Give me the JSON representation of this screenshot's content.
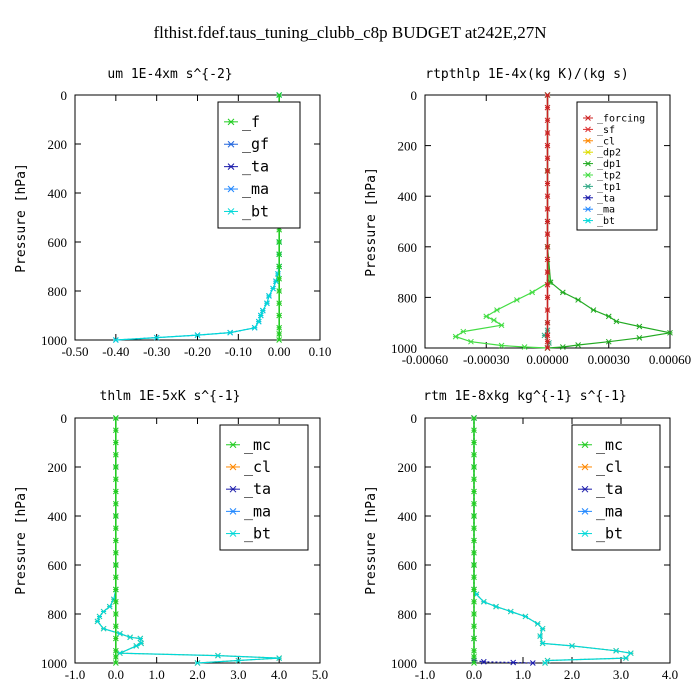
{
  "figure_title": "flthist.fdef.taus_tuning_clubb_c8p  BUDGET at242E,27N",
  "colors": {
    "_f": "#22cc22",
    "_gf": "#2266dd",
    "_ta": "#1a1aaa",
    "_ma": "#2288ff",
    "_bt": "#00d8d8",
    "_forcing": "#cc2222",
    "_sf": "#dd3333",
    "_cl": "#ff8800",
    "_dp2": "#dddd00",
    "_dp1": "#22aa22",
    "_tp2": "#44dd44",
    "_tp1": "#33aa88",
    "_mc": "#22cc22"
  },
  "chart_data": [
    {
      "type": "line",
      "title": "um  1E-4xm s^{-2}",
      "ylabel": "Pressure [hPa]",
      "xlim": [
        -0.5,
        0.1
      ],
      "ylim": [
        1000,
        0
      ],
      "xticks": [
        "-0.50",
        "-0.40",
        "-0.30",
        "-0.20",
        "-0.10",
        "0.00",
        "0.10"
      ],
      "yticks": [
        "0",
        "200",
        "400",
        "600",
        "800",
        "1000"
      ],
      "legend_position": "top-right",
      "legend": [
        "_f",
        "_gf",
        "_ta",
        "_ma",
        "_bt"
      ],
      "series": [
        {
          "name": "_gf",
          "style": "dot",
          "x": [
            0.0,
            0.0,
            0.0,
            0.0,
            0.0,
            0.0,
            0.0,
            0.0,
            0.0,
            -0.003,
            -0.008,
            -0.015,
            -0.025,
            -0.03,
            -0.04,
            -0.045,
            -0.05,
            -0.06,
            -0.12,
            -0.2,
            -0.3,
            -0.4
          ],
          "y": [
            0,
            100,
            200,
            300,
            400,
            500,
            600,
            650,
            700,
            730,
            760,
            790,
            820,
            850,
            880,
            900,
            925,
            950,
            970,
            980,
            990,
            1000
          ]
        },
        {
          "name": "_bt",
          "style": "solid",
          "x": [
            0.0,
            0.0,
            0.0,
            0.0,
            0.0,
            0.0,
            0.0,
            0.0,
            0.0,
            -0.003,
            -0.008,
            -0.015,
            -0.025,
            -0.03,
            -0.04,
            -0.045,
            -0.05,
            -0.06,
            -0.12,
            -0.2,
            -0.3,
            -0.4
          ],
          "y": [
            0,
            100,
            200,
            300,
            400,
            500,
            600,
            650,
            700,
            730,
            760,
            790,
            820,
            850,
            880,
            900,
            925,
            950,
            970,
            980,
            990,
            1000
          ]
        },
        {
          "name": "_f",
          "style": "solid",
          "x": [
            0.0,
            0.0,
            0.0,
            0.0,
            0.0,
            0.0,
            0.0,
            0.0,
            0.0,
            0.0,
            0.0,
            0.0,
            0.0,
            0.0,
            0.0,
            0.0,
            0.0,
            0.0,
            0.0,
            0.0,
            0.0,
            0.0
          ],
          "y": [
            0,
            50,
            100,
            150,
            200,
            250,
            300,
            350,
            400,
            450,
            500,
            550,
            600,
            650,
            700,
            750,
            800,
            850,
            900,
            950,
            975,
            1000
          ]
        }
      ]
    },
    {
      "type": "line",
      "title": "rtpthlp  1E-4x(kg K)/(kg s)",
      "ylabel": "Pressure [hPa]",
      "xlim": [
        -0.0008,
        0.0008
      ],
      "ylim": [
        1000,
        0
      ],
      "xticks": [
        "-0.00060",
        "-0.00030",
        "0.00000",
        "0.00030",
        "0.00060"
      ],
      "yticks": [
        "0",
        "200",
        "400",
        "600",
        "800",
        "1000"
      ],
      "legend_position": "top-right",
      "legend": [
        "_forcing",
        "_sf",
        "_cl",
        "_dp2",
        "_dp1",
        "_tp2",
        "_tp1",
        "_ta",
        "_ma",
        "_bt"
      ],
      "series": [
        {
          "name": "_tp2",
          "style": "solid",
          "x": [
            0.0,
            0.0,
            0.0,
            1e-05,
            -0.0001,
            -0.0002,
            -0.00033,
            -0.0004,
            -0.00035,
            -0.0003,
            -0.00055,
            -0.0006,
            -0.0005,
            -0.0003,
            -0.00015,
            0.0
          ],
          "y": [
            0,
            300,
            600,
            740,
            780,
            810,
            850,
            875,
            890,
            910,
            935,
            955,
            975,
            990,
            996,
            1000
          ]
        },
        {
          "name": "_dp1",
          "style": "solid",
          "x": [
            0.0,
            0.0,
            0.0,
            2e-05,
            0.0001,
            0.0002,
            0.0003,
            0.0004,
            0.00045,
            0.0006,
            0.0008,
            0.0006,
            0.0004,
            0.0002,
            0.0001,
            0.0
          ],
          "y": [
            0,
            300,
            600,
            740,
            780,
            810,
            850,
            875,
            895,
            915,
            940,
            960,
            975,
            988,
            996,
            1000
          ]
        },
        {
          "name": "_tp1",
          "style": "solid",
          "x": [
            0.0,
            0.0,
            0.0,
            0.0,
            -2e-05,
            1e-05,
            0.0
          ],
          "y": [
            0,
            500,
            900,
            930,
            950,
            980,
            1000
          ]
        },
        {
          "name": "_forcing",
          "style": "solid",
          "x": [
            0.0,
            0.0,
            0.0,
            0.0,
            0.0,
            0.0,
            0.0,
            0.0,
            0.0,
            0.0,
            0.0,
            0.0,
            0.0,
            0.0,
            0.0,
            0.0,
            0.0,
            0.0,
            0.0,
            0.0,
            0.0,
            0.0
          ],
          "y": [
            0,
            50,
            100,
            150,
            200,
            250,
            300,
            350,
            400,
            450,
            500,
            550,
            600,
            650,
            700,
            750,
            800,
            850,
            900,
            950,
            975,
            1000
          ]
        }
      ]
    },
    {
      "type": "line",
      "title": "thlm  1E-5xK s^{-1}",
      "ylabel": "Pressure [hPa]",
      "xlim": [
        -1.0,
        5.0
      ],
      "ylim": [
        1000,
        0
      ],
      "xticks": [
        "-1.0",
        "0.0",
        "1.0",
        "2.0",
        "3.0",
        "4.0",
        "5.0"
      ],
      "yticks": [
        "0",
        "200",
        "400",
        "600",
        "800",
        "1000"
      ],
      "legend_position": "top-right",
      "legend": [
        "_mc",
        "_cl",
        "_ta",
        "_ma",
        "_bt"
      ],
      "series": [
        {
          "name": "_cl",
          "style": "dot",
          "x": [
            0.0,
            0.0,
            0.0,
            0.0,
            0.0,
            -0.05,
            -0.15,
            -0.3,
            -0.4,
            -0.45,
            -0.3,
            0.1,
            0.35,
            0.6,
            0.62,
            0.5,
            0.1,
            2.5,
            4.0,
            3.0,
            2.0
          ],
          "y": [
            0,
            200,
            400,
            600,
            700,
            740,
            770,
            790,
            810,
            830,
            860,
            880,
            895,
            900,
            920,
            930,
            960,
            970,
            980,
            990,
            1000
          ]
        },
        {
          "name": "_bt",
          "style": "solid",
          "x": [
            0.0,
            0.0,
            0.0,
            0.0,
            0.0,
            -0.05,
            -0.15,
            -0.3,
            -0.4,
            -0.45,
            -0.3,
            0.1,
            0.35,
            0.6,
            0.62,
            0.5,
            0.1,
            2.5,
            4.0,
            3.0,
            2.0
          ],
          "y": [
            0,
            200,
            400,
            600,
            700,
            740,
            770,
            790,
            810,
            830,
            860,
            880,
            895,
            900,
            920,
            930,
            960,
            970,
            980,
            990,
            1000
          ]
        },
        {
          "name": "_mc",
          "style": "solid",
          "x": [
            0.0,
            0.0,
            0.0,
            0.0,
            0.0,
            0.0,
            0.0,
            0.0,
            0.0,
            0.0,
            0.0,
            0.0,
            0.0,
            0.0,
            0.0,
            0.0,
            0.0,
            0.0,
            0.0,
            0.0,
            0.0,
            0.0
          ],
          "y": [
            0,
            50,
            100,
            150,
            200,
            250,
            300,
            350,
            400,
            450,
            500,
            550,
            600,
            650,
            700,
            750,
            800,
            850,
            900,
            950,
            975,
            1000
          ]
        }
      ]
    },
    {
      "type": "line",
      "title": "rtm  1E-8xkg kg^{-1} s^{-1}",
      "ylabel": "Pressure [hPa]",
      "xlim": [
        -1.0,
        4.0
      ],
      "ylim": [
        1000,
        0
      ],
      "xticks": [
        "-1.0",
        "0.0",
        "1.0",
        "2.0",
        "3.0",
        "4.0"
      ],
      "yticks": [
        "0",
        "200",
        "400",
        "600",
        "800",
        "1000"
      ],
      "legend_position": "top-right",
      "legend": [
        "_mc",
        "_cl",
        "_ta",
        "_ma",
        "_bt"
      ],
      "series": [
        {
          "name": "_cl",
          "style": "dot",
          "x": [
            0.0,
            0.0,
            0.0,
            0.0,
            0.0,
            0.05,
            0.2,
            0.45,
            0.75,
            1.05,
            1.3,
            1.4,
            1.35,
            1.4,
            2.0,
            2.9,
            3.2,
            3.1,
            1.5,
            1.45
          ],
          "y": [
            0,
            200,
            400,
            600,
            700,
            720,
            750,
            770,
            790,
            810,
            840,
            860,
            890,
            920,
            930,
            950,
            960,
            980,
            990,
            1000
          ]
        },
        {
          "name": "_bt",
          "style": "solid",
          "x": [
            0.0,
            0.0,
            0.0,
            0.0,
            0.0,
            0.05,
            0.2,
            0.45,
            0.75,
            1.05,
            1.3,
            1.4,
            1.35,
            1.4,
            2.0,
            2.9,
            3.2,
            3.1,
            1.5,
            1.45
          ],
          "y": [
            0,
            200,
            400,
            600,
            700,
            720,
            750,
            770,
            790,
            810,
            840,
            860,
            890,
            920,
            930,
            950,
            960,
            980,
            990,
            1000
          ]
        },
        {
          "name": "_ta",
          "style": "dot",
          "x": [
            0.0,
            0.0,
            0.0,
            0.2,
            0.8,
            1.2
          ],
          "y": [
            0,
            900,
            990,
            995,
            998,
            1000
          ]
        },
        {
          "name": "_mc",
          "style": "solid",
          "x": [
            0.0,
            0.0,
            0.0,
            0.0,
            0.0,
            0.0,
            0.0,
            0.0,
            0.0,
            0.0,
            0.0,
            0.0,
            0.0,
            0.0,
            0.0,
            0.0,
            0.0,
            0.0,
            0.0,
            0.0,
            0.0,
            0.0
          ],
          "y": [
            0,
            50,
            100,
            150,
            200,
            250,
            300,
            350,
            400,
            450,
            500,
            550,
            600,
            650,
            700,
            750,
            800,
            850,
            900,
            950,
            975,
            1000
          ]
        }
      ]
    }
  ]
}
